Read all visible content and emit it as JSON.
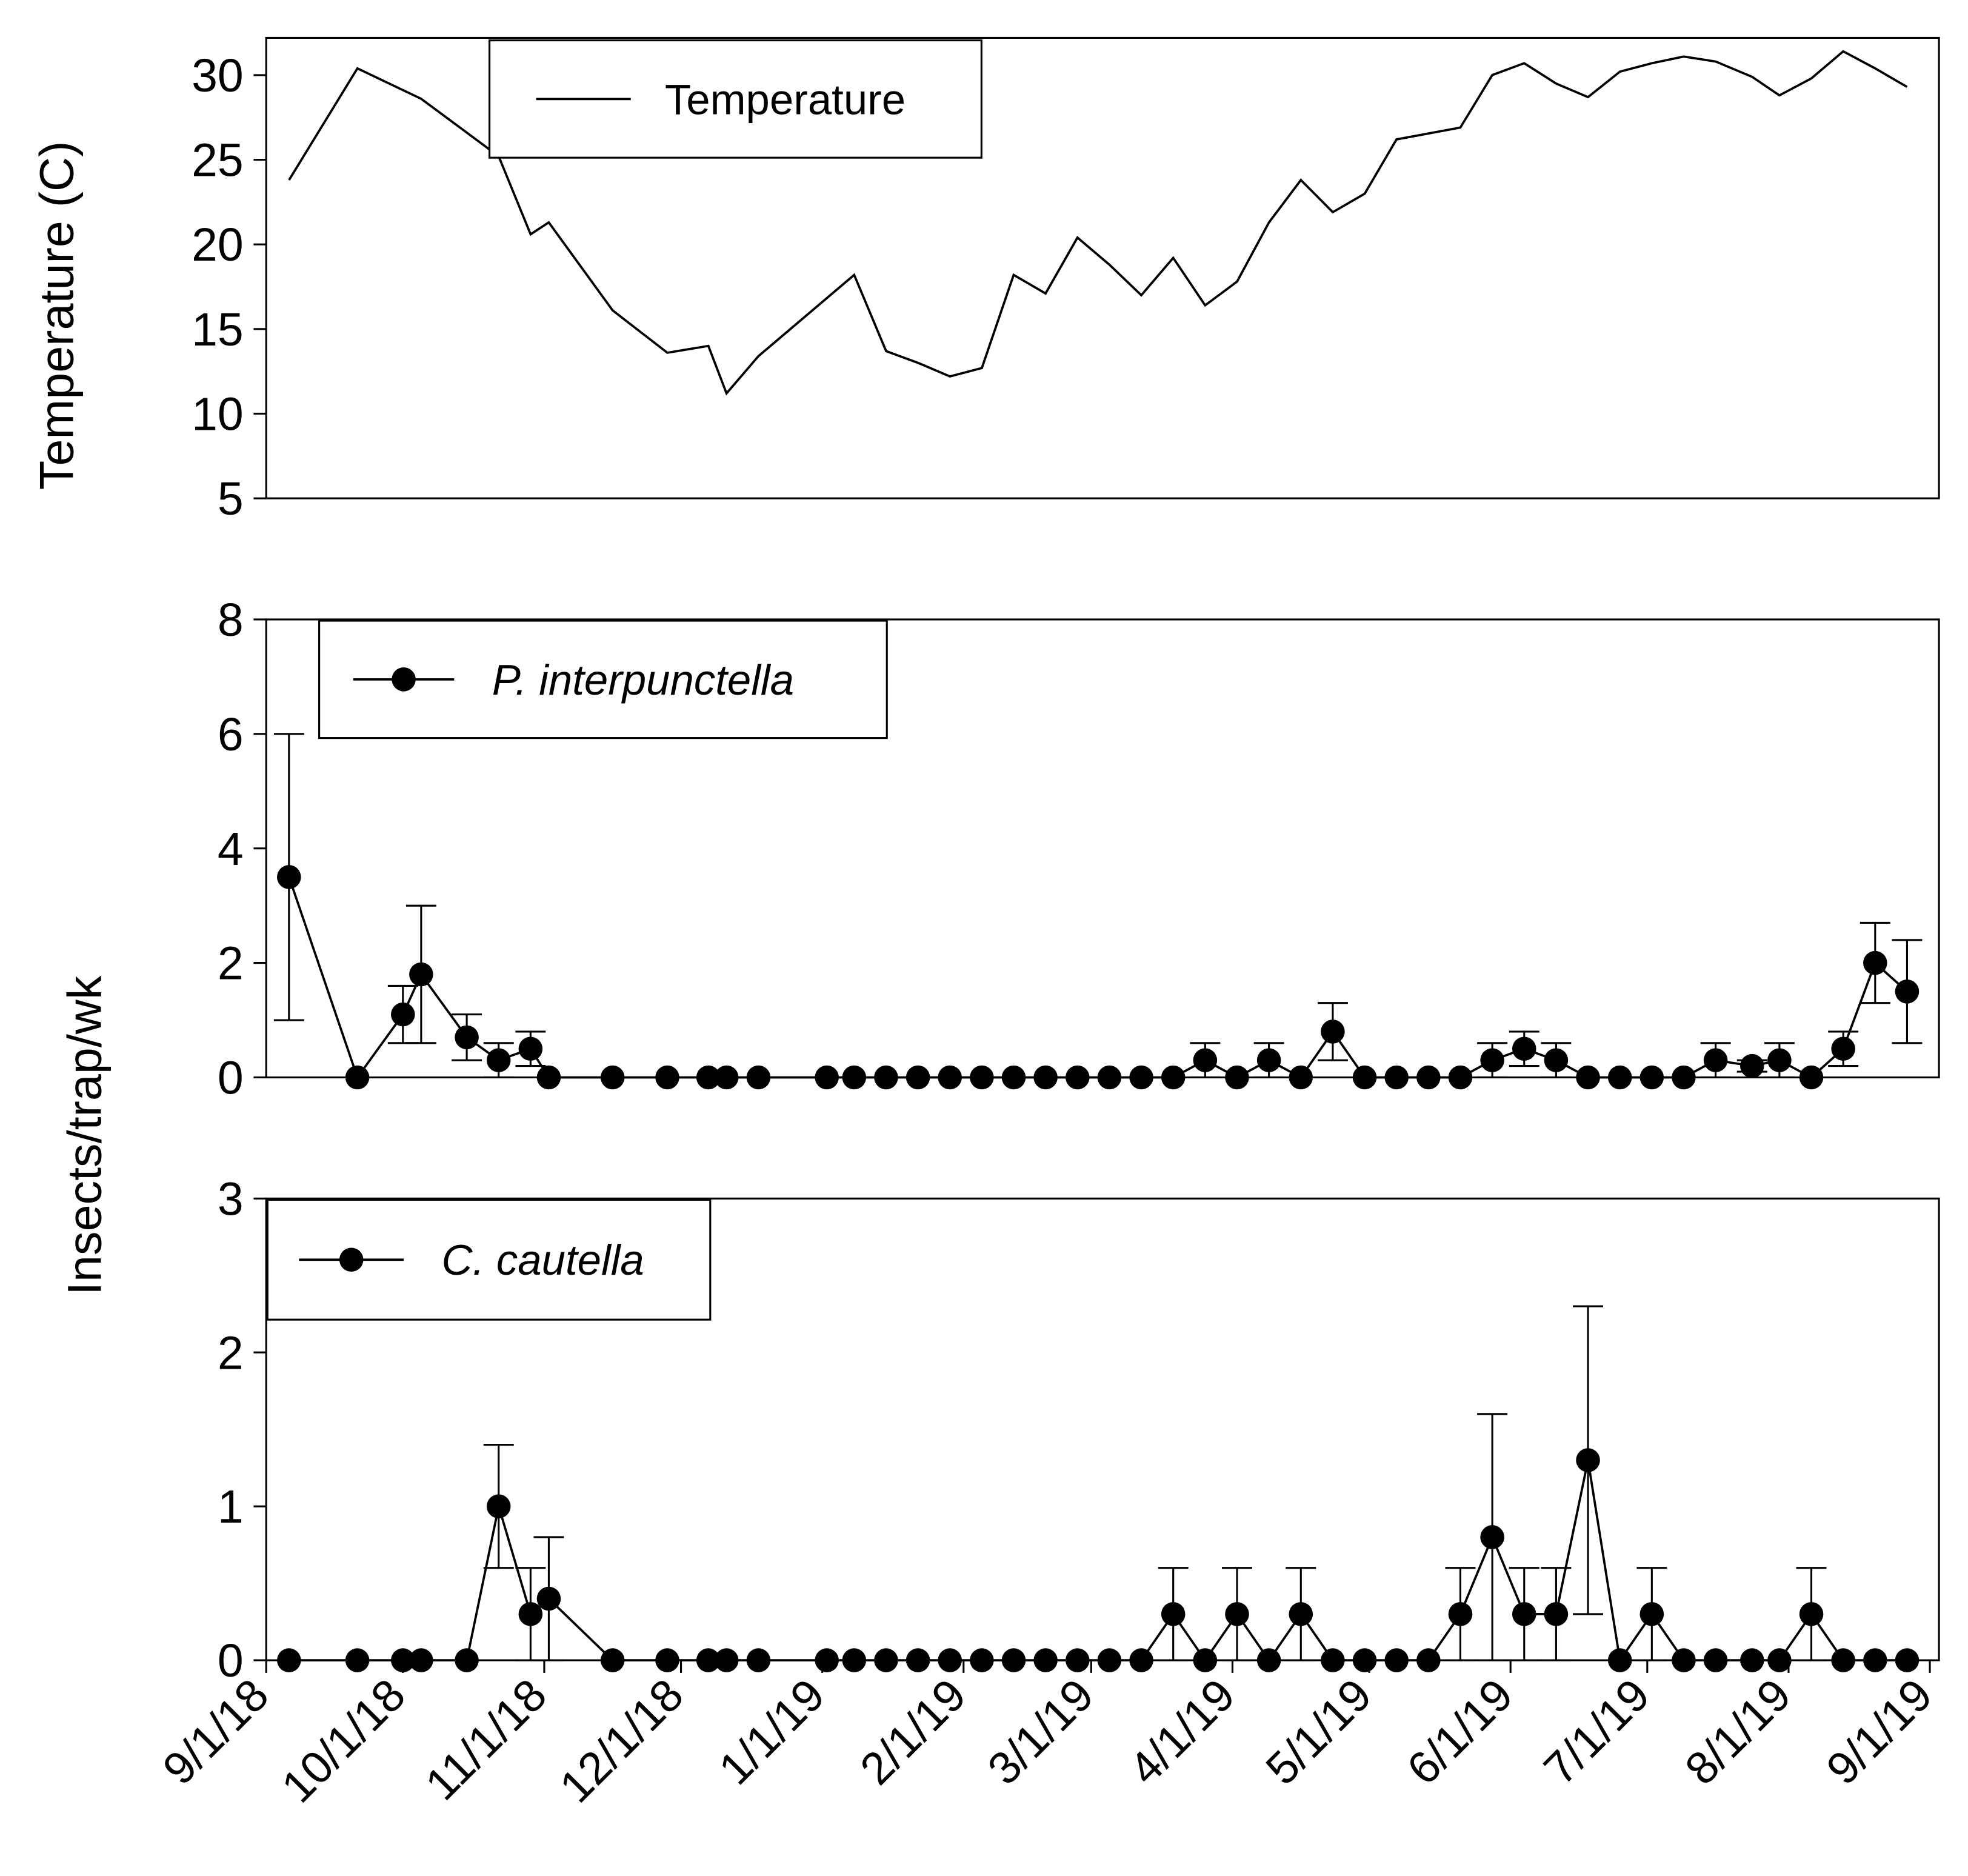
{
  "chart_data": [
    {
      "type": "line",
      "ylabel": "Temperature (C)",
      "xlim": [
        "2018-09-01",
        "2019-09-03"
      ],
      "ylim": [
        5,
        32.2
      ],
      "yticks": [
        5,
        10,
        15,
        20,
        25,
        30
      ],
      "x": [
        "2018-09-06",
        "2018-09-21",
        "2018-10-05",
        "2018-10-15",
        "2018-10-22",
        "2018-10-29",
        "2018-11-02",
        "2018-11-16",
        "2018-11-28",
        "2018-12-07",
        "2018-12-11",
        "2018-12-18",
        "2019-01-08",
        "2019-01-15",
        "2019-01-22",
        "2019-01-29",
        "2019-02-05",
        "2019-02-12",
        "2019-02-19",
        "2019-02-26",
        "2019-03-05",
        "2019-03-12",
        "2019-03-19",
        "2019-03-26",
        "2019-04-02",
        "2019-04-09",
        "2019-04-16",
        "2019-04-23",
        "2019-04-30",
        "2019-05-07",
        "2019-05-21",
        "2019-05-28",
        "2019-06-04",
        "2019-06-11",
        "2019-06-18",
        "2019-06-25",
        "2019-07-02",
        "2019-07-09",
        "2019-07-16",
        "2019-07-24",
        "2019-07-30",
        "2019-08-06",
        "2019-08-13",
        "2019-08-20",
        "2019-08-27"
      ],
      "series": [
        {
          "name": "Temperature",
          "color": "#000000",
          "values": [
            23.8,
            30.4,
            28.6,
            26.6,
            25.2,
            20.6,
            21.3,
            16.1,
            13.6,
            14.0,
            11.2,
            13.4,
            18.2,
            13.7,
            13.0,
            12.2,
            12.7,
            18.2,
            17.1,
            20.4,
            18.8,
            17.0,
            19.2,
            16.4,
            17.8,
            21.3,
            23.8,
            21.9,
            23.0,
            26.2,
            26.9,
            30.0,
            30.7,
            29.5,
            28.7,
            30.2,
            30.7,
            31.1,
            30.8,
            29.9,
            28.8,
            29.8,
            31.4,
            30.4,
            29.3
          ]
        }
      ]
    },
    {
      "type": "line",
      "xlim": [
        "2018-09-01",
        "2019-09-03"
      ],
      "ylim": [
        0,
        8
      ],
      "yticks": [
        0,
        2,
        4,
        6,
        8
      ],
      "x": [
        "2018-09-06",
        "2018-09-21",
        "2018-10-01",
        "2018-10-05",
        "2018-10-15",
        "2018-10-22",
        "2018-10-29",
        "2018-11-02",
        "2018-11-16",
        "2018-11-28",
        "2018-12-07",
        "2018-12-11",
        "2018-12-18",
        "2019-01-02",
        "2019-01-08",
        "2019-01-15",
        "2019-01-22",
        "2019-01-29",
        "2019-02-05",
        "2019-02-12",
        "2019-02-19",
        "2019-02-26",
        "2019-03-05",
        "2019-03-12",
        "2019-03-19",
        "2019-03-26",
        "2019-04-02",
        "2019-04-09",
        "2019-04-16",
        "2019-04-23",
        "2019-04-30",
        "2019-05-07",
        "2019-05-14",
        "2019-05-21",
        "2019-05-28",
        "2019-06-04",
        "2019-06-11",
        "2019-06-18",
        "2019-06-25",
        "2019-07-02",
        "2019-07-09",
        "2019-07-16",
        "2019-07-24",
        "2019-07-30",
        "2019-08-06",
        "2019-08-13",
        "2019-08-20",
        "2019-08-27"
      ],
      "series": [
        {
          "name": "P. interpunctella",
          "color": "#000000",
          "marker": "circle",
          "values": [
            3.5,
            0,
            1.1,
            1.8,
            0.7,
            0.3,
            0.5,
            0,
            0,
            0,
            0,
            0,
            0,
            0,
            0,
            0,
            0,
            0,
            0,
            0,
            0,
            0,
            0,
            0,
            0,
            0.3,
            0,
            0.3,
            0,
            0.8,
            0,
            0,
            0,
            0,
            0.3,
            0.5,
            0.3,
            0,
            0,
            0,
            0,
            0.3,
            0.2,
            0.3,
            0,
            0.5,
            2.0,
            1.5
          ],
          "errors": [
            2.5,
            null,
            0.5,
            1.2,
            0.4,
            0.3,
            0.3,
            null,
            null,
            null,
            null,
            null,
            null,
            null,
            null,
            null,
            null,
            null,
            null,
            null,
            null,
            null,
            null,
            null,
            null,
            0.3,
            null,
            0.3,
            null,
            0.5,
            null,
            null,
            null,
            null,
            0.3,
            0.3,
            0.3,
            null,
            null,
            null,
            null,
            0.3,
            0.1,
            0.3,
            null,
            0.3,
            0.7,
            0.9
          ]
        }
      ]
    },
    {
      "type": "line",
      "ylabel": "Insects/trap/wk",
      "xlim": [
        "2018-09-01",
        "2019-09-03"
      ],
      "xticks": [
        {
          "value": "2018-09-01",
          "label": "9/1/18"
        },
        {
          "value": "2018-10-01",
          "label": "10/1/18"
        },
        {
          "value": "2018-11-01",
          "label": "11/1/18"
        },
        {
          "value": "2018-12-01",
          "label": "12/1/18"
        },
        {
          "value": "2019-01-01",
          "label": "1/1/19"
        },
        {
          "value": "2019-02-01",
          "label": "2/1/19"
        },
        {
          "value": "2019-03-01",
          "label": "3/1/19"
        },
        {
          "value": "2019-04-01",
          "label": "4/1/19"
        },
        {
          "value": "2019-05-01",
          "label": "5/1/19"
        },
        {
          "value": "2019-06-01",
          "label": "6/1/19"
        },
        {
          "value": "2019-07-01",
          "label": "7/1/19"
        },
        {
          "value": "2019-08-01",
          "label": "8/1/19"
        },
        {
          "value": "2019-09-01",
          "label": "9/1/19"
        }
      ],
      "ylim": [
        0,
        3
      ],
      "yticks": [
        0,
        1,
        2,
        3
      ],
      "x": [
        "2018-09-06",
        "2018-09-21",
        "2018-10-01",
        "2018-10-05",
        "2018-10-15",
        "2018-10-22",
        "2018-10-29",
        "2018-11-02",
        "2018-11-16",
        "2018-11-28",
        "2018-12-07",
        "2018-12-11",
        "2018-12-18",
        "2019-01-02",
        "2019-01-08",
        "2019-01-15",
        "2019-01-22",
        "2019-01-29",
        "2019-02-05",
        "2019-02-12",
        "2019-02-19",
        "2019-02-26",
        "2019-03-05",
        "2019-03-12",
        "2019-03-19",
        "2019-03-26",
        "2019-04-02",
        "2019-04-09",
        "2019-04-16",
        "2019-04-23",
        "2019-04-30",
        "2019-05-07",
        "2019-05-14",
        "2019-05-21",
        "2019-05-28",
        "2019-06-04",
        "2019-06-11",
        "2019-06-18",
        "2019-06-25",
        "2019-07-02",
        "2019-07-09",
        "2019-07-16",
        "2019-07-24",
        "2019-07-30",
        "2019-08-06",
        "2019-08-13",
        "2019-08-20",
        "2019-08-27"
      ],
      "series": [
        {
          "name": "C. cautella",
          "color": "#000000",
          "marker": "circle",
          "values": [
            0,
            0,
            0,
            0,
            0,
            1.0,
            0.3,
            0.4,
            0,
            0,
            0,
            0,
            0,
            0,
            0,
            0,
            0,
            0,
            0,
            0,
            0,
            0,
            0,
            0,
            0.3,
            0,
            0.3,
            0,
            0.3,
            0,
            0,
            0,
            0,
            0.3,
            0.8,
            0.3,
            0.3,
            1.3,
            0,
            0.3,
            0,
            0,
            0,
            0,
            0.3,
            0,
            0,
            0
          ],
          "errors": [
            null,
            null,
            null,
            null,
            null,
            0.4,
            0.3,
            0.4,
            null,
            null,
            null,
            null,
            null,
            null,
            null,
            null,
            null,
            null,
            null,
            null,
            null,
            null,
            null,
            null,
            0.3,
            null,
            0.3,
            null,
            0.3,
            null,
            null,
            null,
            null,
            0.3,
            0.8,
            0.3,
            0.3,
            1.0,
            null,
            0.3,
            null,
            null,
            null,
            null,
            0.3,
            null,
            null,
            null
          ]
        }
      ]
    }
  ]
}
